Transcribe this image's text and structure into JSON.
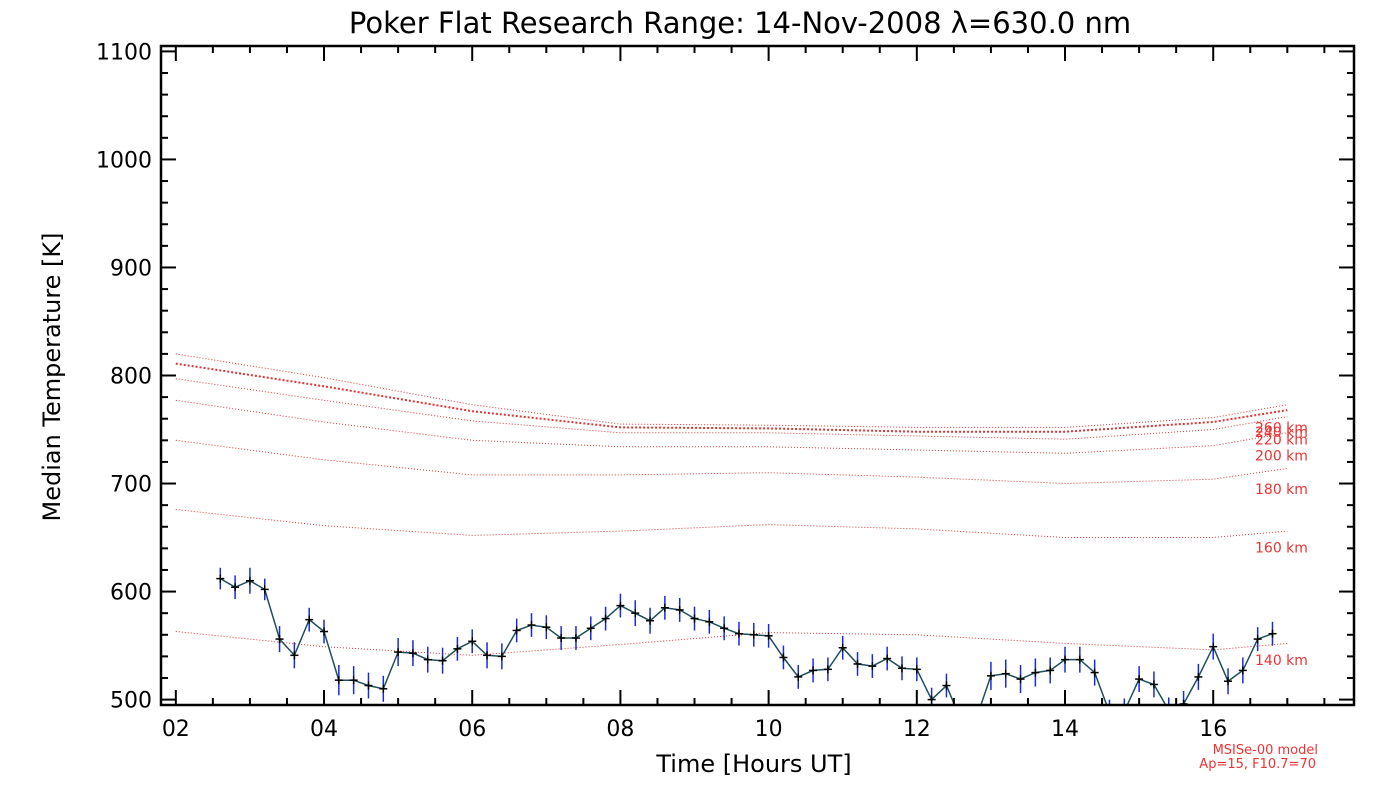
{
  "chart_data": {
    "type": "line",
    "title": "Poker Flat Research Range: 14-Nov-2008 λ=630.0 nm",
    "xlabel": "Time [Hours UT]",
    "ylabel": "Median Temperature [K]",
    "xlim": [
      1.8,
      17.9
    ],
    "ylim": [
      495,
      1105
    ],
    "x_ticks": [
      2,
      4,
      6,
      8,
      10,
      12,
      14,
      16
    ],
    "x_tick_labels": [
      "02",
      "04",
      "06",
      "08",
      "10",
      "12",
      "14",
      "16"
    ],
    "y_ticks": [
      500,
      600,
      700,
      800,
      900,
      1000,
      1100
    ],
    "y_tick_labels": [
      "500",
      "600",
      "700",
      "800",
      "900",
      "1000",
      "1100"
    ],
    "grid": false,
    "colors": {
      "measured_line": "#1f4f5f",
      "error_bars": "#1a2bd6",
      "model": "#e33333",
      "axes": "#000000"
    },
    "measured": {
      "x": [
        2.6,
        2.8,
        3.0,
        3.2,
        3.4,
        3.6,
        3.8,
        4.0,
        4.2,
        4.4,
        4.6,
        4.8,
        5.0,
        5.2,
        5.4,
        5.6,
        5.8,
        6.0,
        6.2,
        6.4,
        6.6,
        6.8,
        7.0,
        7.2,
        7.4,
        7.6,
        7.8,
        8.0,
        8.2,
        8.4,
        8.6,
        8.8,
        9.0,
        9.2,
        9.4,
        9.6,
        9.8,
        10.0,
        10.2,
        10.4,
        10.6,
        10.8,
        11.0,
        11.2,
        11.4,
        11.6,
        11.8,
        12.0,
        12.2,
        12.4,
        12.6,
        12.8,
        13.0,
        13.2,
        13.4,
        13.6,
        13.8,
        14.0,
        14.2,
        14.4,
        14.6,
        14.8,
        15.0,
        15.2,
        15.4,
        15.6,
        15.8,
        16.0,
        16.2,
        16.4,
        16.6,
        16.8
      ],
      "y": [
        612,
        604,
        610,
        602,
        556,
        541,
        574,
        563,
        518,
        518,
        513,
        510,
        544,
        543,
        537,
        536,
        547,
        554,
        541,
        540,
        564,
        569,
        567,
        557,
        557,
        566,
        575,
        587,
        580,
        573,
        585,
        583,
        575,
        572,
        566,
        561,
        560,
        559,
        539,
        521,
        527,
        528,
        548,
        533,
        531,
        538,
        529,
        528,
        500,
        513,
        480,
        482,
        522,
        524,
        519,
        525,
        527,
        537,
        537,
        525,
        488,
        489,
        519,
        514,
        490,
        496,
        521,
        549,
        517,
        527,
        556,
        561
      ],
      "error": [
        10,
        11,
        12,
        10,
        12,
        12,
        11,
        11,
        14,
        13,
        12,
        12,
        13,
        12,
        12,
        12,
        11,
        11,
        12,
        12,
        11,
        11,
        11,
        11,
        11,
        11,
        11,
        11,
        12,
        12,
        11,
        11,
        11,
        11,
        11,
        11,
        11,
        11,
        11,
        11,
        11,
        11,
        11,
        11,
        11,
        11,
        11,
        11,
        11,
        11,
        12,
        12,
        13,
        13,
        13,
        13,
        12,
        12,
        12,
        12,
        12,
        12,
        12,
        12,
        12,
        12,
        12,
        12,
        12,
        12,
        11,
        11
      ]
    },
    "model_series": [
      {
        "name": "140 km",
        "x": [
          2,
          4,
          6,
          8,
          10,
          12,
          14,
          16,
          17
        ],
        "values": [
          563,
          549,
          541,
          551,
          562,
          560,
          552,
          546,
          552
        ]
      },
      {
        "name": "160 km",
        "x": [
          2,
          4,
          6,
          8,
          10,
          12,
          14,
          16,
          17
        ],
        "values": [
          676,
          661,
          652,
          656,
          662,
          658,
          650,
          650,
          656
        ]
      },
      {
        "name": "180 km",
        "x": [
          2,
          4,
          6,
          8,
          10,
          12,
          14,
          16,
          17
        ],
        "values": [
          740,
          722,
          708,
          708,
          710,
          706,
          700,
          704,
          714
        ]
      },
      {
        "name": "200 km",
        "x": [
          2,
          4,
          6,
          8,
          10,
          12,
          14,
          16,
          17
        ],
        "values": [
          777,
          757,
          740,
          734,
          734,
          731,
          728,
          735,
          747
        ]
      },
      {
        "name": "220 km",
        "x": [
          2,
          4,
          6,
          8,
          10,
          12,
          14,
          16,
          17
        ],
        "values": [
          797,
          777,
          758,
          747,
          747,
          744,
          741,
          750,
          762
        ]
      },
      {
        "name": "240 km",
        "x": [
          2,
          4,
          6,
          8,
          10,
          12,
          14,
          16,
          17
        ],
        "values": [
          811,
          790,
          767,
          752,
          751,
          748,
          748,
          757,
          768
        ]
      },
      {
        "name": "260 km",
        "x": [
          2,
          4,
          6,
          8,
          10,
          12,
          14,
          16,
          17
        ],
        "values": [
          820,
          798,
          773,
          755,
          754,
          752,
          752,
          761,
          773
        ]
      }
    ],
    "annotations": [
      "MSISe-00 model",
      "Ap=15, F10.7=70"
    ]
  }
}
